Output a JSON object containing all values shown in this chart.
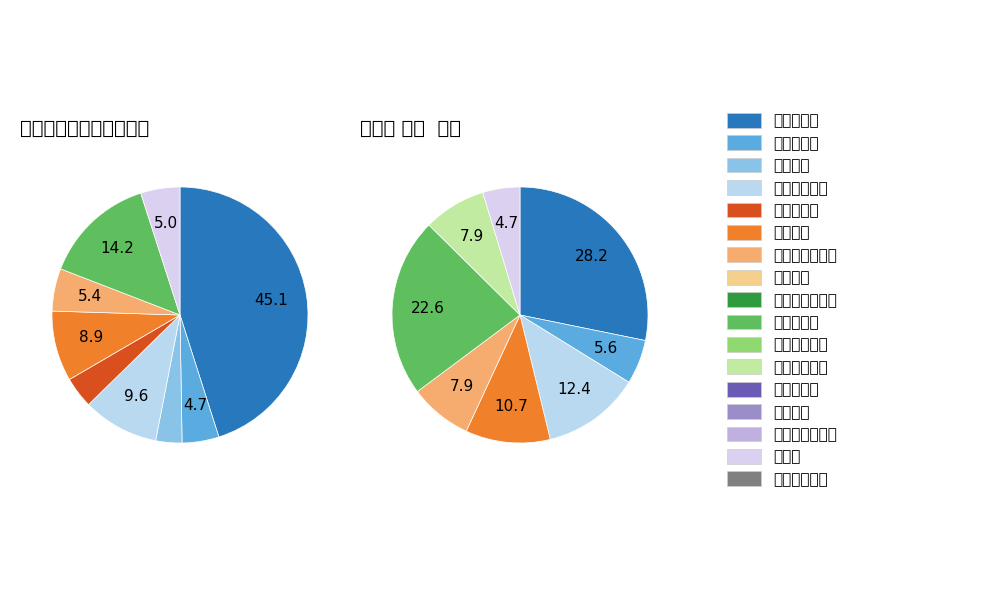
{
  "left_title": "パ・リーグ全プレイヤー",
  "right_title": "長谷川 信哦  選手",
  "pitch_types": [
    "ストレート",
    "ツーシーム",
    "シュート",
    "カットボール",
    "スプリット",
    "フォーク",
    "チェンジアップ",
    "シンカー",
    "高速スライダー",
    "スライダー",
    "縦スライダー",
    "パワーカーブ",
    "スクリュー",
    "ナックル",
    "ナックルカーブ",
    "カーブ",
    "スローカーブ"
  ],
  "colors": [
    "#2878bd",
    "#5aabe0",
    "#89c4e8",
    "#b8d9f0",
    "#d94f1e",
    "#f0802a",
    "#f5ac6e",
    "#f5d08c",
    "#2e9b3e",
    "#5fbf5f",
    "#90d870",
    "#c0eba0",
    "#6b5bb5",
    "#9b8ec8",
    "#c0b0e0",
    "#dcd0f0",
    "#808080"
  ],
  "left_data": [
    {
      "label": "ストレート",
      "value": 43.6,
      "color": "#2878bd"
    },
    {
      "label": "ツーシーム",
      "value": 4.5,
      "color": "#5aabe0"
    },
    {
      "label": "シュート",
      "value": 3.2,
      "color": "#89c4e8"
    },
    {
      "label": "カットボール",
      "value": 9.3,
      "color": "#b8d9f0"
    },
    {
      "label": "スプリット",
      "value": 3.8,
      "color": "#d94f1e"
    },
    {
      "label": "フォーク",
      "value": 8.6,
      "color": "#f0802a"
    },
    {
      "label": "チェンジアップ",
      "value": 5.2,
      "color": "#f5ac6e"
    },
    {
      "label": "シンカー",
      "value": 0.0,
      "color": "#f5d08c"
    },
    {
      "label": "高速スライダー",
      "value": 0.0,
      "color": "#2e9b3e"
    },
    {
      "label": "スライダー",
      "value": 13.7,
      "color": "#5fbf5f"
    },
    {
      "label": "縦スライダー",
      "value": 0.0,
      "color": "#90d870"
    },
    {
      "label": "パワーカーブ",
      "value": 0.0,
      "color": "#c0eba0"
    },
    {
      "label": "スクリュー",
      "value": 0.0,
      "color": "#6b5bb5"
    },
    {
      "label": "ナックル",
      "value": 0.0,
      "color": "#9b8ec8"
    },
    {
      "label": "ナックルカーブ",
      "value": 0.0,
      "color": "#c0b0e0"
    },
    {
      "label": "カーブ",
      "value": 4.8,
      "color": "#dcd0f0"
    },
    {
      "label": "スローカーブ",
      "value": 0.0,
      "color": "#808080"
    }
  ],
  "right_data": [
    {
      "label": "ストレート",
      "value": 28.2,
      "color": "#2878bd"
    },
    {
      "label": "ツーシーム",
      "value": 5.6,
      "color": "#5aabe0"
    },
    {
      "label": "シュート",
      "value": 0.0,
      "color": "#89c4e8"
    },
    {
      "label": "カットボール",
      "value": 12.4,
      "color": "#b8d9f0"
    },
    {
      "label": "スプリット",
      "value": 0.0,
      "color": "#d94f1e"
    },
    {
      "label": "フォーク",
      "value": 10.7,
      "color": "#f0802a"
    },
    {
      "label": "チェンジアップ",
      "value": 7.9,
      "color": "#f5ac6e"
    },
    {
      "label": "シンカー",
      "value": 0.0,
      "color": "#f5d08c"
    },
    {
      "label": "高速スライダー",
      "value": 0.0,
      "color": "#2e9b3e"
    },
    {
      "label": "スライダー",
      "value": 22.6,
      "color": "#5fbf5f"
    },
    {
      "label": "縦スライダー",
      "value": 0.0,
      "color": "#90d870"
    },
    {
      "label": "パワーカーブ",
      "value": 7.9,
      "color": "#c0eba0"
    },
    {
      "label": "スクリュー",
      "value": 0.0,
      "color": "#6b5bb5"
    },
    {
      "label": "ナックル",
      "value": 0.0,
      "color": "#9b8ec8"
    },
    {
      "label": "ナックルカーブ",
      "value": 0.0,
      "color": "#c0b0e0"
    },
    {
      "label": "カーブ",
      "value": 4.7,
      "color": "#dcd0f0"
    },
    {
      "label": "スローカーブ",
      "value": 0.0,
      "color": "#808080"
    }
  ],
  "label_min_pct": 4.5,
  "bg_color": "#ffffff",
  "text_color": "#000000",
  "font_size_title": 14,
  "font_size_label": 11,
  "font_size_legend": 11
}
